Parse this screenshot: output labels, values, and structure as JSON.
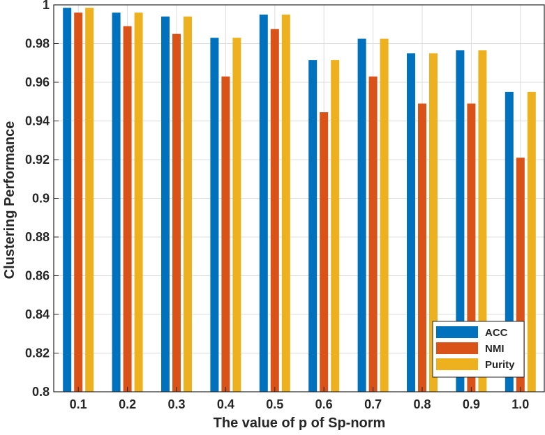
{
  "chart_data": {
    "type": "bar",
    "title": "",
    "xlabel": "The value of p of Sp-norm",
    "ylabel": "Clustering Performance",
    "categories": [
      "0.1",
      "0.2",
      "0.3",
      "0.4",
      "0.5",
      "0.6",
      "0.7",
      "0.8",
      "0.9",
      "1.0"
    ],
    "series": [
      {
        "name": "ACC",
        "color": "#0072BD",
        "values": [
          0.9985,
          0.996,
          0.994,
          0.983,
          0.995,
          0.9715,
          0.9825,
          0.975,
          0.9765,
          0.955
        ]
      },
      {
        "name": "NMI",
        "color": "#D95319",
        "values": [
          0.996,
          0.989,
          0.985,
          0.963,
          0.9875,
          0.9445,
          0.963,
          0.949,
          0.949,
          0.921
        ]
      },
      {
        "name": "Purity",
        "color": "#EDB120",
        "values": [
          0.9985,
          0.996,
          0.994,
          0.983,
          0.995,
          0.9715,
          0.9825,
          0.975,
          0.9765,
          0.955
        ]
      }
    ],
    "yticks": [
      "0.8",
      "0.82",
      "0.84",
      "0.86",
      "0.88",
      "0.9",
      "0.92",
      "0.94",
      "0.96",
      "0.98",
      "1"
    ],
    "ylim": [
      0.8,
      1.0
    ],
    "grid": true,
    "legend_position": "bottom-right"
  }
}
